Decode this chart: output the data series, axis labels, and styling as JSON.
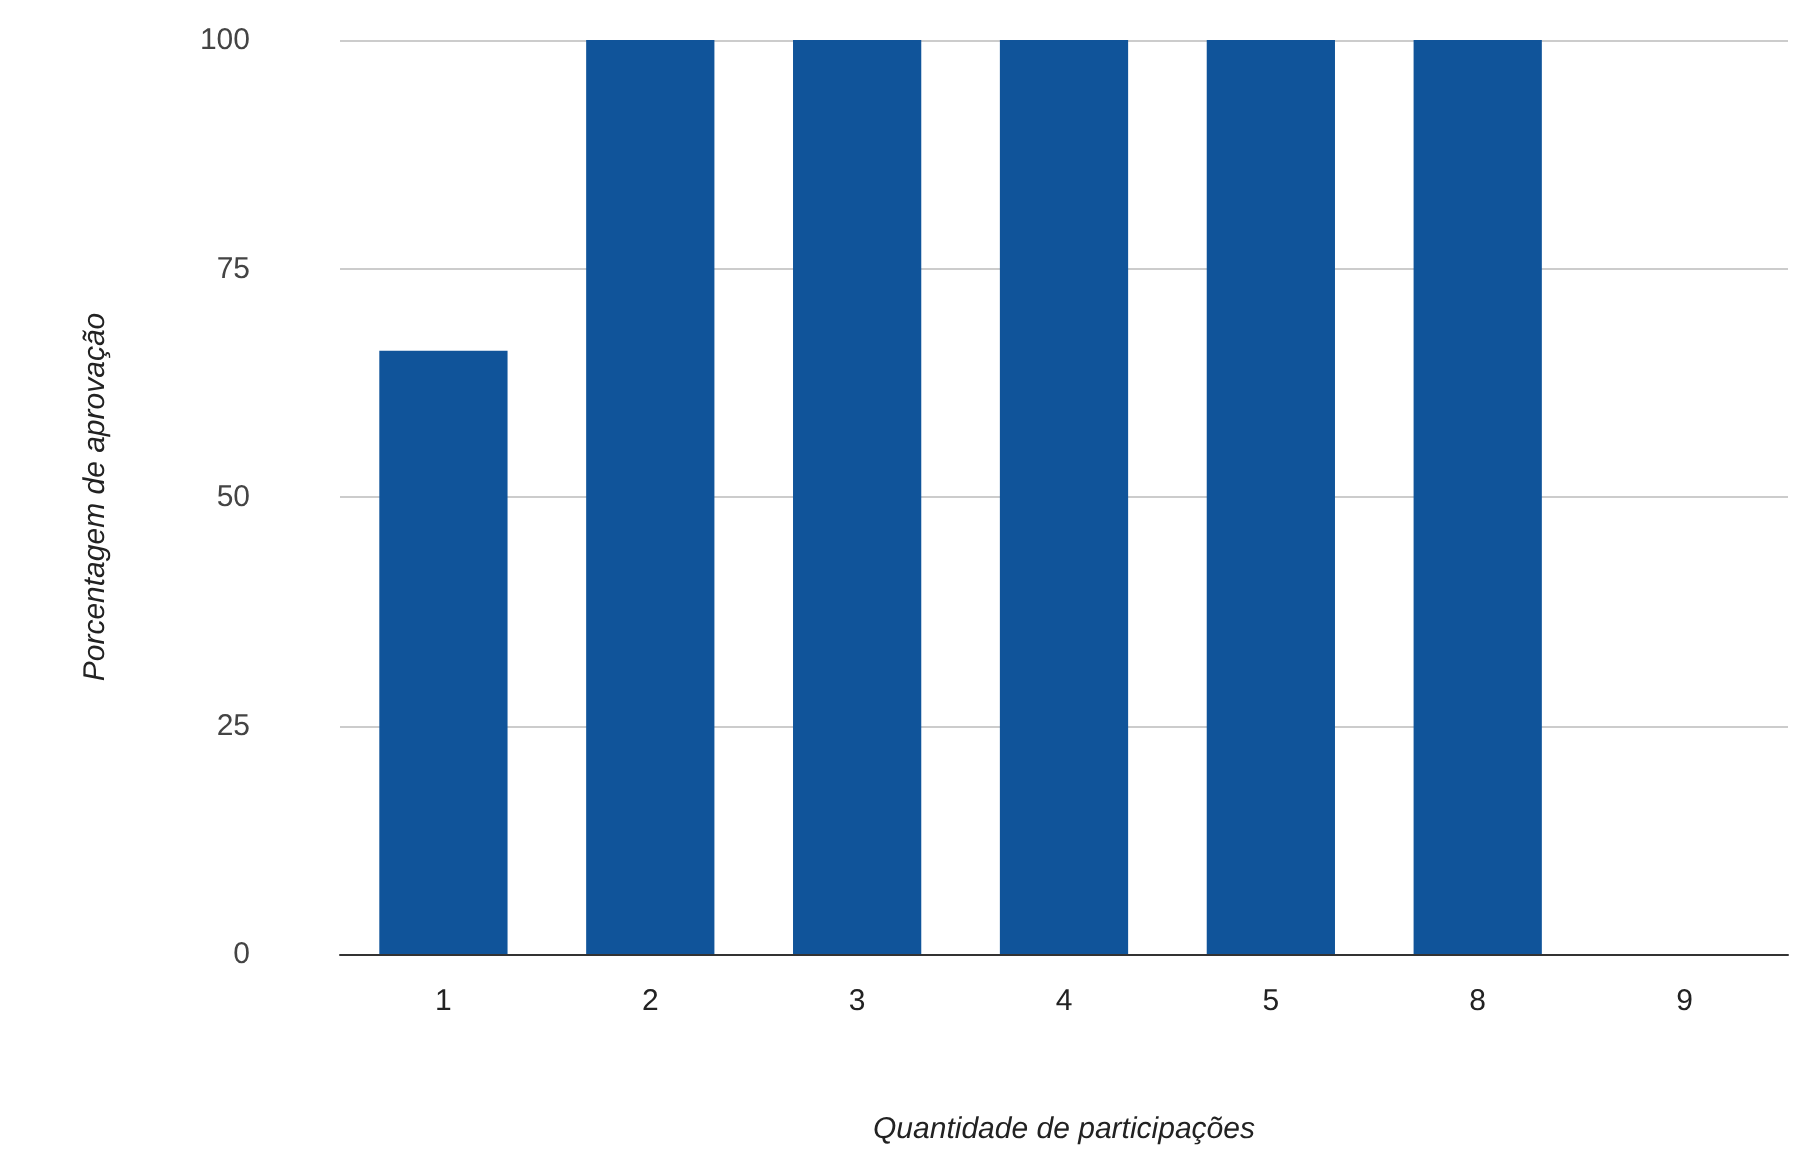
{
  "chart_data": {
    "type": "bar",
    "xlabel": "Quantidade de participações",
    "ylabel": "Porcentagem de aprovação",
    "categories": [
      "1",
      "2",
      "3",
      "4",
      "5",
      "8",
      "9"
    ],
    "values": [
      66,
      100,
      100,
      100,
      100,
      100,
      0
    ],
    "color": "#10549a",
    "ylim": [
      0,
      100
    ],
    "yticks": [
      0,
      25,
      50,
      75,
      100
    ],
    "grid": "y"
  }
}
